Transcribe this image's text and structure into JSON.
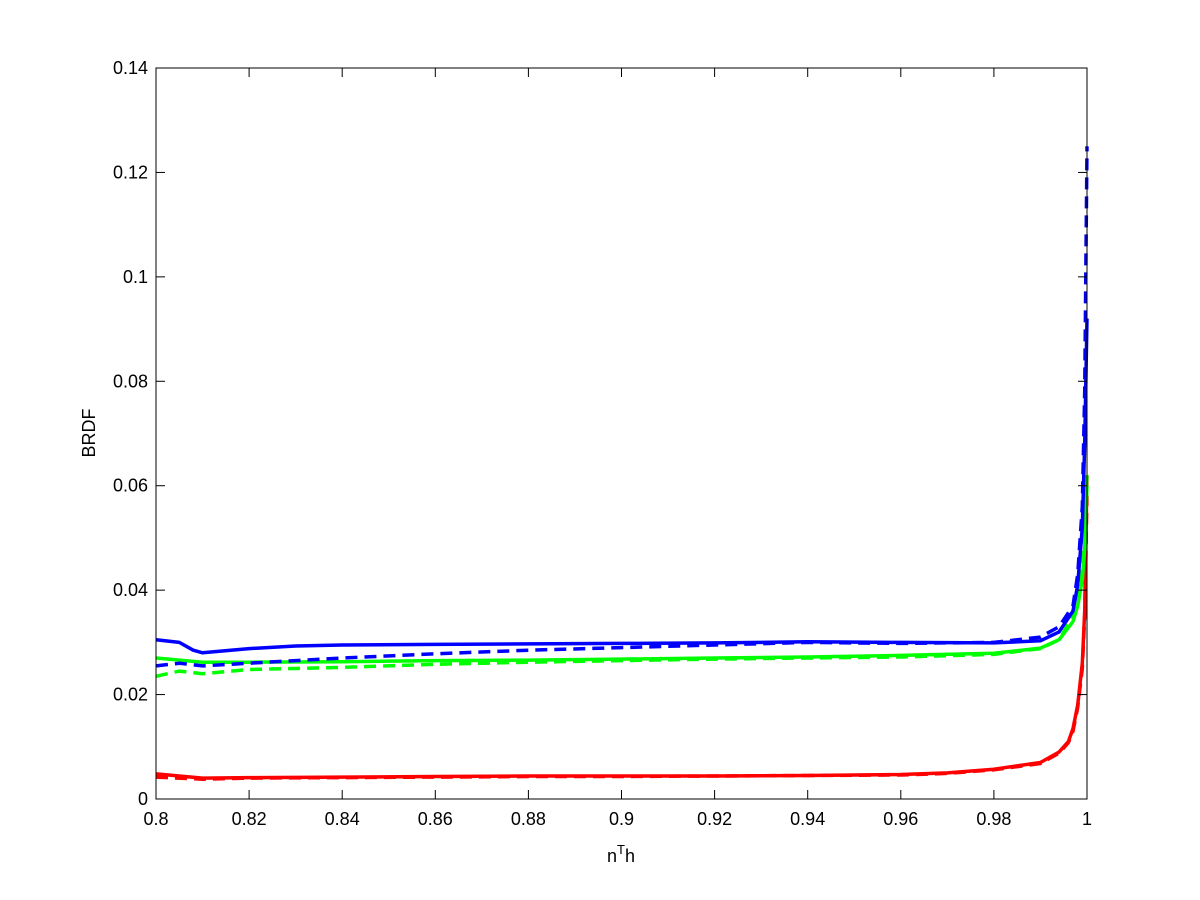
{
  "chart_data": {
    "type": "line",
    "xlabel": "n",
    "xlabel_superscript": "T",
    "xlabel_suffix": "h",
    "ylabel": "BRDF",
    "xlim": [
      0.8,
      1.0
    ],
    "ylim": [
      0,
      0.14
    ],
    "xticks": [
      0.8,
      0.82,
      0.84,
      0.86,
      0.88,
      0.9,
      0.92,
      0.94,
      0.96,
      0.98,
      1.0
    ],
    "xtick_labels": [
      "0.8",
      "0.82",
      "0.84",
      "0.86",
      "0.88",
      "0.9",
      "0.92",
      "0.94",
      "0.96",
      "0.98",
      "1"
    ],
    "yticks": [
      0,
      0.02,
      0.04,
      0.06,
      0.08,
      0.1,
      0.12,
      0.14
    ],
    "ytick_labels": [
      "0",
      "0.02",
      "0.04",
      "0.06",
      "0.08",
      "0.1",
      "0.12",
      "0.14"
    ],
    "grid": false,
    "series": [
      {
        "color": "#0000ff",
        "style": "solid",
        "x": [
          0.8,
          0.805,
          0.808,
          0.81,
          0.82,
          0.83,
          0.84,
          0.86,
          0.88,
          0.9,
          0.92,
          0.94,
          0.96,
          0.98,
          0.99,
          0.994,
          0.997,
          0.998,
          0.999,
          0.9995,
          1.0
        ],
        "y": [
          0.0305,
          0.03,
          0.0285,
          0.028,
          0.0288,
          0.0293,
          0.0295,
          0.0296,
          0.0297,
          0.0298,
          0.0299,
          0.0301,
          0.03,
          0.0299,
          0.0303,
          0.032,
          0.036,
          0.041,
          0.052,
          0.068,
          0.092
        ]
      },
      {
        "color": "#0000ff",
        "style": "dashed",
        "x": [
          0.8,
          0.805,
          0.81,
          0.82,
          0.83,
          0.84,
          0.86,
          0.88,
          0.9,
          0.92,
          0.94,
          0.96,
          0.98,
          0.99,
          0.994,
          0.997,
          0.998,
          0.999,
          0.9995,
          1.0
        ],
        "y": [
          0.0255,
          0.026,
          0.0255,
          0.026,
          0.0265,
          0.027,
          0.0278,
          0.0285,
          0.029,
          0.0295,
          0.03,
          0.0298,
          0.03,
          0.031,
          0.033,
          0.037,
          0.043,
          0.056,
          0.078,
          0.125
        ]
      },
      {
        "color": "#00ff00",
        "style": "solid",
        "x": [
          0.8,
          0.81,
          0.82,
          0.84,
          0.86,
          0.88,
          0.9,
          0.92,
          0.94,
          0.96,
          0.98,
          0.99,
          0.994,
          0.997,
          0.998,
          0.999,
          0.9995,
          1.0
        ],
        "y": [
          0.027,
          0.0262,
          0.0262,
          0.0263,
          0.0265,
          0.0266,
          0.0268,
          0.027,
          0.0272,
          0.0275,
          0.0279,
          0.0289,
          0.0305,
          0.034,
          0.037,
          0.042,
          0.048,
          0.06
        ]
      },
      {
        "color": "#00ff00",
        "style": "dashed",
        "x": [
          0.8,
          0.805,
          0.81,
          0.82,
          0.84,
          0.86,
          0.88,
          0.9,
          0.92,
          0.94,
          0.96,
          0.98,
          0.99,
          0.994,
          0.997,
          0.998,
          0.999,
          1.0
        ],
        "y": [
          0.0235,
          0.0245,
          0.024,
          0.0248,
          0.0252,
          0.0258,
          0.0262,
          0.0265,
          0.0268,
          0.027,
          0.0272,
          0.0277,
          0.0288,
          0.0305,
          0.035,
          0.039,
          0.045,
          0.062
        ]
      },
      {
        "color": "#ff0000",
        "style": "solid",
        "x": [
          0.8,
          0.81,
          0.82,
          0.84,
          0.86,
          0.88,
          0.9,
          0.92,
          0.94,
          0.96,
          0.97,
          0.98,
          0.99,
          0.994,
          0.996,
          0.997,
          0.998,
          0.999,
          0.9995,
          1.0
        ],
        "y": [
          0.0048,
          0.004,
          0.0041,
          0.0042,
          0.0043,
          0.0044,
          0.0044,
          0.0044,
          0.0045,
          0.0047,
          0.005,
          0.0057,
          0.007,
          0.009,
          0.011,
          0.0135,
          0.018,
          0.026,
          0.036,
          0.062
        ]
      },
      {
        "color": "#ff0000",
        "style": "dashed",
        "x": [
          0.8,
          0.81,
          0.82,
          0.84,
          0.86,
          0.88,
          0.9,
          0.92,
          0.94,
          0.96,
          0.97,
          0.98,
          0.99,
          0.994,
          0.996,
          0.997,
          0.998,
          0.999,
          0.9995,
          1.0
        ],
        "y": [
          0.0042,
          0.0038,
          0.004,
          0.0041,
          0.0042,
          0.0043,
          0.0043,
          0.0044,
          0.0045,
          0.0046,
          0.0049,
          0.0056,
          0.0068,
          0.0088,
          0.0108,
          0.013,
          0.0175,
          0.025,
          0.035,
          0.058
        ]
      }
    ]
  }
}
